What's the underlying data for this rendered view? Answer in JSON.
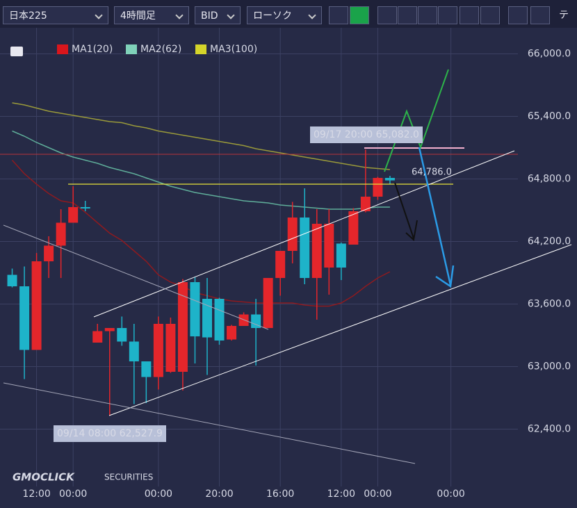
{
  "toolbar": {
    "symbol": "日本225",
    "timeframe": "4時間足",
    "price_type": "BID",
    "chart_style": "ローソク",
    "cut_tab": "テ"
  },
  "watermark": {
    "brand": "GMOCLICK",
    "suffix": "SECURITIES"
  },
  "chart_data": {
    "type": "candlestick",
    "legend": [
      {
        "name": "MA1(20)",
        "color": "#d9161c"
      },
      {
        "name": "MA2(62)",
        "color": "#7fd1b9"
      },
      {
        "name": "MA3(100)",
        "color": "#d4d42a"
      }
    ],
    "up_color": "#e4262b",
    "down_color": "#1eb3c9",
    "open": [
      63880,
      63770,
      63160,
      64010,
      64160,
      64380,
      64530,
      63230,
      63340,
      63370,
      63240,
      63050,
      62900,
      62950,
      62950,
      63810,
      63650,
      63650,
      63260,
      63390,
      63500,
      63370,
      63850,
      64110,
      64430,
      63850,
      63950,
      64180,
      64170,
      64490,
      64630,
      64810
    ],
    "high": [
      63940,
      63960,
      64090,
      64250,
      64510,
      64730,
      64590,
      63410,
      63370,
      63480,
      63410,
      63050,
      63480,
      63470,
      63840,
      63860,
      63850,
      63660,
      63400,
      63520,
      63650,
      63850,
      64110,
      64580,
      64710,
      64510,
      64510,
      64190,
      64520,
      65082,
      64820,
      64830
    ],
    "low": [
      63760,
      62880,
      63160,
      63850,
      63850,
      64380,
      64490,
      63230,
      62527.9,
      63200,
      62640,
      62650,
      62780,
      62940,
      62770,
      63030,
      62920,
      63210,
      63250,
      63390,
      63010,
      63370,
      63680,
      63990,
      63790,
      63450,
      63690,
      63830,
      64170,
      64480,
      64600,
      64750
    ],
    "close": [
      63770,
      63160,
      64010,
      64160,
      64380,
      64530,
      64530,
      63340,
      63370,
      63240,
      63050,
      62900,
      63410,
      63410,
      63810,
      63290,
      63280,
      63250,
      63390,
      63500,
      63370,
      63850,
      64110,
      64430,
      63850,
      64370,
      64370,
      63950,
      64490,
      64630,
      64810,
      64786
    ],
    "series": [
      {
        "name": "MA1(20)",
        "color": "#8e1a1f",
        "values": [
          64980,
          64850,
          64750,
          64660,
          64590,
          64570,
          64480,
          64380,
          64280,
          64210,
          64110,
          64010,
          63880,
          63810,
          63770,
          63710,
          63680,
          63650,
          63630,
          63620,
          63610,
          63610,
          63610,
          63610,
          63590,
          63580,
          63580,
          63610,
          63680,
          63770,
          63850,
          63910
        ]
      },
      {
        "name": "MA2(62)",
        "color": "#5fae9a",
        "values": [
          65260,
          65210,
          65150,
          65100,
          65050,
          65010,
          64980,
          64950,
          64910,
          64880,
          64850,
          64810,
          64770,
          64730,
          64700,
          64670,
          64650,
          64630,
          64610,
          64590,
          64580,
          64570,
          64550,
          64540,
          64530,
          64520,
          64510,
          64510,
          64510,
          64520,
          64530,
          64530
        ]
      },
      {
        "name": "MA3(100)",
        "color": "#9a9a3a",
        "values": [
          65530,
          65510,
          65480,
          65450,
          65430,
          65410,
          65390,
          65370,
          65350,
          65340,
          65310,
          65290,
          65260,
          65240,
          65220,
          65200,
          65180,
          65160,
          65140,
          65120,
          65090,
          65070,
          65050,
          65030,
          65010,
          64990,
          64970,
          64950,
          64930,
          64910,
          64900,
          64890
        ]
      }
    ],
    "xlim": [
      -1,
      41.5
    ],
    "xticks": [
      {
        "value": 2,
        "label": "12:00"
      },
      {
        "value": 5,
        "label": "00:00"
      },
      {
        "value": 12,
        "label": "00:00"
      },
      {
        "value": 17,
        "label": "20:00"
      },
      {
        "value": 22,
        "label": "16:00"
      },
      {
        "value": 27,
        "label": "12:00"
      },
      {
        "value": 30,
        "label": "00:00"
      },
      {
        "value": 36,
        "label": "00:00"
      }
    ],
    "ylim": [
      61850,
      66250
    ],
    "yticks": [
      {
        "value": 62400,
        "label": "62,400.0"
      },
      {
        "value": 63000,
        "label": "63,000.0"
      },
      {
        "value": 63600,
        "label": "63,600.0"
      },
      {
        "value": 64200,
        "label": "64,200.0"
      },
      {
        "value": 64800,
        "label": "64,800.0"
      },
      {
        "value": 65400,
        "label": "65,400.0"
      },
      {
        "value": 66000,
        "label": "66,000.0"
      }
    ],
    "grid": true,
    "annotations": {
      "high_label": "09/17 20:00 65,082.0",
      "low_label": "09/14 08:00 62,527.9",
      "current_price": "64,786.0"
    }
  }
}
